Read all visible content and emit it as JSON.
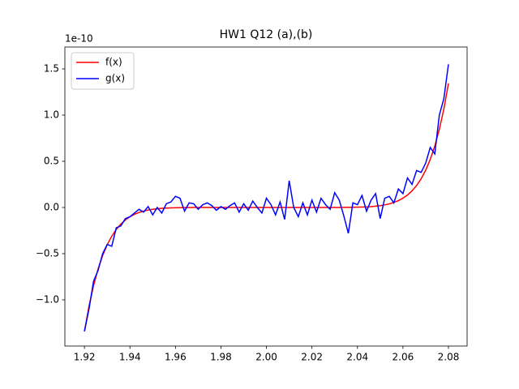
{
  "chart_data": {
    "type": "line",
    "title": "HW1 Q12 (a),(b)",
    "y_offset_text": "1e-10",
    "x": [
      1.92,
      1.922,
      1.924,
      1.926,
      1.928,
      1.93,
      1.932,
      1.934,
      1.936,
      1.938,
      1.94,
      1.942,
      1.944,
      1.946,
      1.948,
      1.95,
      1.952,
      1.954,
      1.956,
      1.958,
      1.96,
      1.962,
      1.964,
      1.966,
      1.968,
      1.97,
      1.972,
      1.974,
      1.976,
      1.978,
      1.98,
      1.982,
      1.984,
      1.986,
      1.988,
      1.99,
      1.992,
      1.994,
      1.996,
      1.998,
      2.0,
      2.002,
      2.004,
      2.006,
      2.008,
      2.01,
      2.012,
      2.014,
      2.016,
      2.018,
      2.02,
      2.022,
      2.024,
      2.026,
      2.028,
      2.03,
      2.032,
      2.034,
      2.036,
      2.038,
      2.04,
      2.042,
      2.044,
      2.046,
      2.048,
      2.05,
      2.052,
      2.054,
      2.056,
      2.058,
      2.06,
      2.062,
      2.064,
      2.066,
      2.068,
      2.07,
      2.072,
      2.074,
      2.076,
      2.078,
      2.08
    ],
    "series": [
      {
        "name": "f(x)",
        "color": "#ff0000",
        "values": [
          -1.342,
          -1.068,
          -0.846,
          -0.665,
          -0.52,
          -0.404,
          -0.311,
          -0.238,
          -0.18,
          -0.135,
          -0.101,
          -0.074,
          -0.054,
          -0.039,
          -0.028,
          -0.02,
          -0.014,
          -0.009,
          -0.006,
          -0.004,
          -0.003,
          -0.002,
          -0.001,
          -0.001,
          0,
          0,
          0,
          0,
          0,
          0,
          0,
          0,
          0,
          0,
          0,
          0,
          0,
          0,
          0,
          0,
          0,
          0,
          0,
          0,
          0,
          0,
          0,
          0,
          0,
          0,
          0,
          0,
          0,
          0,
          0,
          0,
          0,
          0.001,
          0.001,
          0.002,
          0.003,
          0.004,
          0.006,
          0.009,
          0.014,
          0.02,
          0.028,
          0.039,
          0.054,
          0.074,
          0.101,
          0.135,
          0.18,
          0.238,
          0.311,
          0.404,
          0.52,
          0.665,
          0.846,
          1.068,
          1.342
        ]
      },
      {
        "name": "g(x)",
        "color": "#0000ff",
        "values": [
          -1.34,
          -1.1,
          -0.8,
          -0.68,
          -0.5,
          -0.4,
          -0.42,
          -0.22,
          -0.2,
          -0.12,
          -0.1,
          -0.06,
          -0.02,
          -0.05,
          0.01,
          -0.08,
          0.0,
          -0.06,
          0.04,
          0.06,
          0.12,
          0.1,
          -0.04,
          0.05,
          0.04,
          -0.02,
          0.03,
          0.05,
          0.02,
          -0.03,
          0.01,
          -0.02,
          0.02,
          0.05,
          -0.05,
          0.04,
          -0.03,
          0.07,
          0.0,
          -0.06,
          0.1,
          0.03,
          -0.08,
          0.06,
          -0.13,
          0.29,
          0.0,
          -0.1,
          0.05,
          -0.08,
          0.08,
          -0.05,
          0.1,
          0.03,
          -0.02,
          0.16,
          0.08,
          -0.09,
          -0.28,
          0.05,
          0.03,
          0.13,
          -0.04,
          0.08,
          0.15,
          -0.12,
          0.1,
          0.12,
          0.05,
          0.2,
          0.15,
          0.32,
          0.25,
          0.4,
          0.38,
          0.48,
          0.65,
          0.58,
          1.0,
          1.18,
          1.55
        ]
      }
    ],
    "xlim": [
      1.9114,
      2.0882
    ],
    "ylim": [
      -1.5,
      1.737
    ],
    "xticks": [
      1.92,
      1.94,
      1.96,
      1.98,
      {
        "value": 2,
        "label": "2.00"
      },
      2.02,
      2.04,
      2.06,
      2.08
    ],
    "yticks": [
      {
        "value": -1,
        "label": "−1.0"
      },
      {
        "value": -0.5,
        "label": "−0.5"
      },
      {
        "value": 0,
        "label": "0.0"
      },
      0.5,
      {
        "value": 1,
        "label": "1.0"
      },
      1.5
    ],
    "legend": "upper left"
  }
}
